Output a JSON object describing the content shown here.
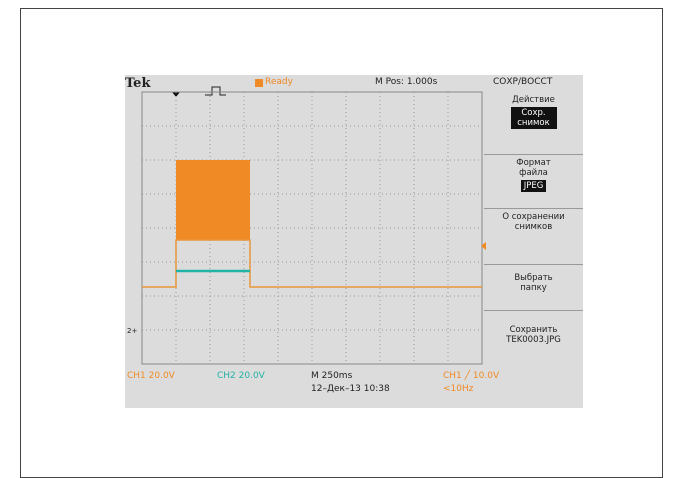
{
  "header": {
    "brand": "Tek",
    "status": "Ready",
    "position": "M Pos: 1.000s",
    "menu_title": "СОХР/ВОССТ"
  },
  "menu": [
    {
      "label": "Действие",
      "value": "Сохр. снимок"
    },
    {
      "label": "Формат файла",
      "value": "JPEG"
    },
    {
      "label": "О сохранении снимков"
    },
    {
      "label": "Выбрать папку"
    },
    {
      "label": "Сохранить TEK0003.JPG"
    }
  ],
  "footer": {
    "ch1": "CH1 20.0V",
    "ch2": "CH2 20.0V",
    "timebase": "M 250ms",
    "datetime": "12–Дек–13 10:38",
    "trigger": "CH1 ╱ 10.0V",
    "frequency": "<10Hz"
  },
  "markers": {
    "ch2": "2+"
  }
}
